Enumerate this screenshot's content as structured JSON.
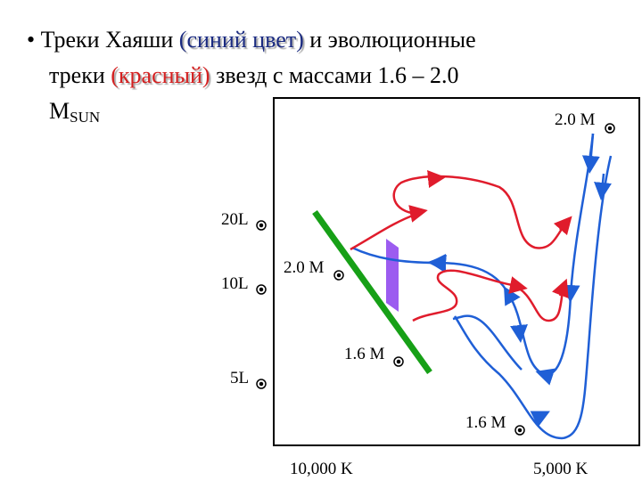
{
  "bullet": {
    "line1": [
      "Треки Хаяши ",
      "(синий цвет)",
      " и эволюционные"
    ],
    "line2": [
      "треки ",
      "(красный)",
      " звезд с массами 1.6 – 2.0"
    ],
    "line3": [
      "M",
      "SUN"
    ]
  },
  "diagram": {
    "labels": {
      "l20": "20L",
      "l10": "10L",
      "l5": "5L",
      "m20_top": "2.0 M",
      "m20_left": "2.0 M",
      "m16_mid": "1.6 M",
      "m16_bottom": "1.6 M",
      "t10000": "10,000 K",
      "t5000": "5,000 K"
    }
  }
}
